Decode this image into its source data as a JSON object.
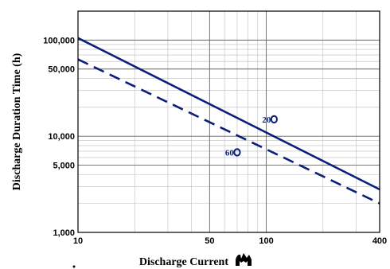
{
  "chart_data": {
    "type": "line",
    "x_scale": "log",
    "y_scale": "log",
    "xlim": [
      10,
      400
    ],
    "ylim": [
      1000,
      200000
    ],
    "x_ticks": [
      10,
      50,
      100,
      400
    ],
    "x_tick_labels": [
      "10",
      "50",
      "100",
      "400"
    ],
    "y_ticks": [
      1000,
      5000,
      10000,
      50000,
      100000
    ],
    "y_tick_labels": [
      "1,000",
      "5,000",
      "10,000",
      "50,000",
      "100,000"
    ],
    "xlabel": "Discharge Current",
    "ylabel": "Discharge Duration Time (h)",
    "grid": true,
    "series": [
      {
        "style": "solid",
        "color": "#0a1f7a",
        "x": [
          10,
          400
        ],
        "y": [
          105000,
          2800
        ]
      },
      {
        "style": "dashed",
        "color": "#0a1f7a",
        "x": [
          10,
          400
        ],
        "y": [
          63000,
          2000
        ]
      }
    ],
    "annotations": [
      {
        "text": "20",
        "x": 110,
        "y": 15000
      },
      {
        "text": "60",
        "x": 70,
        "y": 6800
      }
    ],
    "xlabel_icon": "unit-glyph-icon"
  }
}
